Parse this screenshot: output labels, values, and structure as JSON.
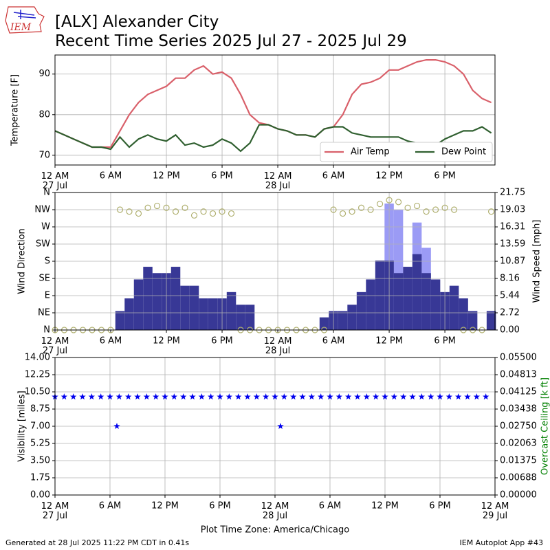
{
  "title": "[ALX] Alexander City",
  "subtitle": "Recent Time Series 2025 Jul 27 - 2025 Jul 29",
  "logo_text": "IEM",
  "footer_left": "Generated at 28 Jul 2025 11:22 PM CDT in 0.41s",
  "footer_right": "IEM Autoplot App #43",
  "chart_data": [
    {
      "type": "line",
      "ylabel": "Temperature [F]",
      "x": [
        0,
        1,
        2,
        3,
        4,
        5,
        6,
        7,
        8,
        9,
        10,
        11,
        12,
        13,
        14,
        15,
        16,
        17,
        18,
        19,
        20,
        21,
        22,
        23,
        24,
        25,
        26,
        27,
        28,
        29,
        30,
        31,
        32,
        33,
        34,
        35,
        36,
        37,
        38,
        39,
        40,
        41,
        42,
        43,
        44,
        45,
        46,
        47
      ],
      "xlim": [
        0,
        47.4
      ],
      "xticks": [
        {
          "value": 0,
          "label": "12 AM\n27 Jul"
        },
        {
          "value": 6,
          "label": "6 AM"
        },
        {
          "value": 12,
          "label": "12 PM"
        },
        {
          "value": 18,
          "label": "6 PM"
        },
        {
          "value": 24,
          "label": "12 AM\n28 Jul"
        },
        {
          "value": 30,
          "label": "6 AM"
        },
        {
          "value": 36,
          "label": "12 PM"
        },
        {
          "value": 42,
          "label": "6 PM"
        }
      ],
      "ylim": [
        67.6,
        94.7
      ],
      "yticks": [
        70,
        80,
        90
      ],
      "grid": true,
      "legend": "lower right",
      "series": [
        {
          "name": "Air Temp",
          "color": "#d9606a",
          "values": [
            76,
            75,
            74,
            73,
            72,
            72,
            72,
            76,
            80,
            83,
            85,
            86,
            87,
            89,
            89,
            91,
            92,
            90,
            90.5,
            89,
            85,
            80,
            78,
            77.5,
            76.5,
            76,
            75,
            75,
            74.5,
            76.5,
            77,
            80,
            85,
            87.5,
            88,
            89,
            91,
            91,
            92,
            93,
            93.5,
            93.5,
            93,
            92,
            90,
            86,
            84,
            83
          ]
        },
        {
          "name": "Dew Point",
          "color": "#2f5f2f",
          "values": [
            76,
            75,
            74,
            73,
            72,
            72,
            71.5,
            74.5,
            72,
            74,
            75,
            74,
            73.5,
            75,
            72.5,
            73,
            72,
            72.5,
            74,
            73,
            71,
            73,
            77.5,
            77.5,
            76.5,
            76,
            75,
            75,
            74.5,
            76.5,
            77,
            77,
            75.5,
            75,
            74.5,
            74.5,
            74.5,
            74.5,
            73.5,
            73,
            73,
            72.5,
            74,
            75,
            76,
            76,
            77,
            75.5
          ]
        }
      ]
    },
    {
      "type": "combo",
      "ylabel": "Wind Direction",
      "y2label": "Wind Speed [mph]",
      "x": [
        0,
        1,
        2,
        3,
        4,
        5,
        6,
        7,
        8,
        9,
        10,
        11,
        12,
        13,
        14,
        15,
        16,
        17,
        18,
        19,
        20,
        21,
        22,
        23,
        24,
        25,
        26,
        27,
        28,
        29,
        30,
        31,
        32,
        33,
        34,
        35,
        36,
        37,
        38,
        39,
        40,
        41,
        42,
        43,
        44,
        45,
        46,
        47
      ],
      "xlim": [
        0,
        47.4
      ],
      "xticks": [
        {
          "value": 0,
          "label": "12 AM\n27 Jul"
        },
        {
          "value": 6,
          "label": "6 AM"
        },
        {
          "value": 12,
          "label": "12 PM"
        },
        {
          "value": 18,
          "label": "6 PM"
        },
        {
          "value": 24,
          "label": "12 AM\n28 Jul"
        },
        {
          "value": 30,
          "label": "6 AM"
        },
        {
          "value": 36,
          "label": "12 PM"
        },
        {
          "value": 42,
          "label": "6 PM"
        }
      ],
      "ylim": [
        0,
        360
      ],
      "yticks": [
        {
          "value": 0,
          "label": "N"
        },
        {
          "value": 45,
          "label": "NE"
        },
        {
          "value": 90,
          "label": "E"
        },
        {
          "value": 135,
          "label": "SE"
        },
        {
          "value": 180,
          "label": "S"
        },
        {
          "value": 225,
          "label": "SW"
        },
        {
          "value": 270,
          "label": "W"
        },
        {
          "value": 315,
          "label": "NW"
        },
        {
          "value": 360,
          "label": "N"
        }
      ],
      "y2lim": [
        0,
        21.75
      ],
      "y2ticks": [
        {
          "value": 0,
          "label": "0.00"
        },
        2.72,
        5.44,
        8.16,
        10.87,
        13.59,
        16.31,
        19.03,
        21.75
      ],
      "grid": true,
      "series": [
        {
          "kind": "bar",
          "axis": "y2",
          "color": "#9b9bf5",
          "values": [
            null,
            null,
            null,
            null,
            null,
            null,
            null,
            null,
            null,
            null,
            null,
            null,
            null,
            null,
            null,
            null,
            null,
            null,
            null,
            null,
            null,
            null,
            null,
            null,
            null,
            null,
            null,
            null,
            null,
            null,
            null,
            null,
            null,
            null,
            null,
            null,
            20,
            19,
            null,
            17,
            13,
            null,
            null,
            null,
            null,
            null,
            null,
            null
          ]
        },
        {
          "kind": "bar",
          "axis": "y2",
          "color": "#383896",
          "values": [
            0,
            0,
            0,
            0,
            0,
            0,
            0,
            3,
            5,
            8,
            10,
            9,
            9,
            10,
            7,
            7,
            5,
            5,
            5,
            6,
            4,
            4,
            0,
            0,
            0,
            0,
            0,
            0,
            0,
            2,
            3,
            3,
            4,
            6,
            8,
            11,
            11,
            9,
            10,
            12,
            9,
            8,
            6,
            7,
            5,
            3,
            0,
            3
          ]
        },
        {
          "kind": "scatter",
          "axis": "y",
          "color": "#b0b070",
          "values": [
            0,
            0,
            0,
            0,
            0,
            0,
            0,
            315,
            310,
            305,
            320,
            325,
            320,
            310,
            320,
            300,
            310,
            305,
            310,
            305,
            0,
            0,
            0,
            0,
            0,
            0,
            0,
            0,
            0,
            0,
            315,
            305,
            310,
            320,
            315,
            330,
            340,
            335,
            320,
            325,
            310,
            315,
            320,
            315,
            0,
            0,
            0,
            310
          ]
        }
      ]
    },
    {
      "type": "scatter",
      "ylabel": "Visibility [miles]",
      "y2label": "Overcast Ceiling [k ft]",
      "y2label_color": "#008000",
      "xlabel": "Plot Time Zone: America/Chicago",
      "x": [
        0,
        1,
        2,
        3,
        4,
        5,
        6,
        6.75,
        7,
        8,
        9,
        10,
        11,
        12,
        13,
        14,
        15,
        16,
        17,
        18,
        19,
        20,
        21,
        22,
        23,
        24,
        24.6,
        25,
        26,
        27,
        28,
        29,
        30,
        31,
        32,
        33,
        34,
        35,
        36,
        37,
        38,
        39,
        40,
        41,
        42,
        43,
        44,
        45,
        46,
        47
      ],
      "xlim": [
        0,
        48
      ],
      "xticks": [
        {
          "value": 0,
          "label": "12 AM\n27 Jul"
        },
        {
          "value": 6,
          "label": "6 AM"
        },
        {
          "value": 12,
          "label": "12 PM"
        },
        {
          "value": 18,
          "label": "6 PM"
        },
        {
          "value": 24,
          "label": "12 AM\n28 Jul"
        },
        {
          "value": 30,
          "label": "6 AM"
        },
        {
          "value": 36,
          "label": "12 PM"
        },
        {
          "value": 42,
          "label": "6 PM"
        },
        {
          "value": 48,
          "label": "12 AM\n29 Jul"
        }
      ],
      "ylim": [
        0,
        14
      ],
      "yticks": [
        {
          "value": 0,
          "label": "0.00"
        },
        1.75,
        {
          "value": 3.5,
          "label": "3.50"
        },
        5.25,
        {
          "value": 7,
          "label": "7.00"
        },
        8.75,
        {
          "value": 10.5,
          "label": "10.50"
        },
        12.25,
        {
          "value": 14,
          "label": "14.00"
        }
      ],
      "y2lim": [
        0,
        0.055
      ],
      "y2ticks": [
        {
          "value": 0,
          "label": "0.00000"
        },
        {
          "value": 0.006875,
          "label": "0.00688"
        },
        {
          "value": 0.01375,
          "label": "0.01375"
        },
        {
          "value": 0.020625,
          "label": "0.02063"
        },
        {
          "value": 0.0275,
          "label": "0.02750"
        },
        {
          "value": 0.034375,
          "label": "0.03438"
        },
        {
          "value": 0.04125,
          "label": "0.04125"
        },
        {
          "value": 0.048125,
          "label": "0.04813"
        },
        {
          "value": 0.055,
          "label": "0.05500"
        }
      ],
      "grid": true,
      "series": [
        {
          "color": "#0000ee",
          "values": [
            10,
            10,
            10,
            10,
            10,
            10,
            10,
            7,
            10,
            10,
            10,
            10,
            10,
            10,
            10,
            10,
            10,
            10,
            10,
            10,
            10,
            10,
            10,
            10,
            10,
            10,
            7,
            10,
            10,
            10,
            10,
            10,
            10,
            10,
            10,
            10,
            10,
            10,
            10,
            10,
            10,
            10,
            10,
            10,
            10,
            10,
            10,
            10,
            10,
            10
          ]
        }
      ]
    }
  ]
}
